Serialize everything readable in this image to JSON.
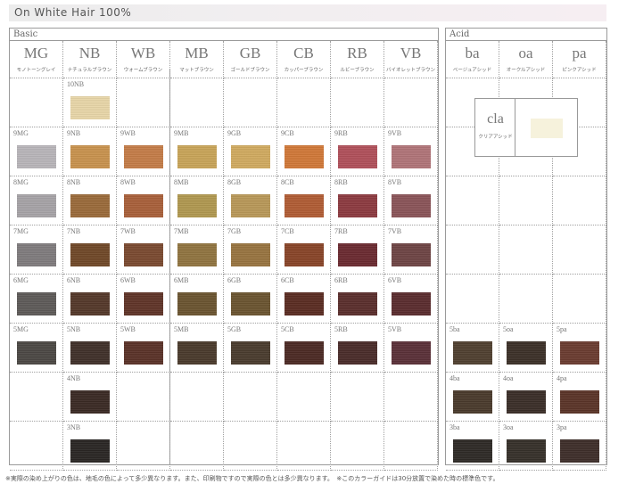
{
  "title": "On White Hair 100%",
  "basic": {
    "label": "Basic",
    "columns": [
      {
        "code": "MG",
        "ja": "モノトーングレイ",
        "swatches": [
          {
            "level": 9,
            "code": "9MG",
            "color": "#b8b5b9"
          },
          {
            "level": 8,
            "code": "8MG",
            "color": "#a6a3a7"
          },
          {
            "level": 7,
            "code": "7MG",
            "color": "#7f7b7d"
          },
          {
            "level": 6,
            "code": "6MG",
            "color": "#5e5a58"
          },
          {
            "level": 5,
            "code": "5MG",
            "color": "#4c4844"
          }
        ]
      },
      {
        "code": "NB",
        "ja": "ナチュラルブラウン",
        "swatches": [
          {
            "level": 10,
            "code": "10NB",
            "color": "#e8d6a8"
          },
          {
            "level": 9,
            "code": "9NB",
            "color": "#c8924e"
          },
          {
            "level": 8,
            "code": "8NB",
            "color": "#9a6a3a"
          },
          {
            "level": 7,
            "code": "7NB",
            "color": "#704828"
          },
          {
            "level": 6,
            "code": "6NB",
            "color": "#54382a"
          },
          {
            "level": 5,
            "code": "5NB",
            "color": "#40302a"
          },
          {
            "level": 4,
            "code": "4NB",
            "color": "#3a2a24"
          },
          {
            "level": 3,
            "code": "3NB",
            "color": "#2a2624"
          }
        ]
      },
      {
        "code": "WB",
        "ja": "ウォームブラウン",
        "swatches": [
          {
            "level": 9,
            "code": "9WB",
            "color": "#c47c48"
          },
          {
            "level": 8,
            "code": "8WB",
            "color": "#a8603a"
          },
          {
            "level": 7,
            "code": "7WB",
            "color": "#7a4a30"
          },
          {
            "level": 6,
            "code": "6WB",
            "color": "#603428"
          },
          {
            "level": 5,
            "code": "5WB",
            "color": "#5a3228"
          }
        ]
      },
      {
        "code": "MB",
        "ja": "マットブラウン",
        "swatches": [
          {
            "level": 9,
            "code": "9MB",
            "color": "#c8a458"
          },
          {
            "level": 8,
            "code": "8MB",
            "color": "#b09850"
          },
          {
            "level": 7,
            "code": "7MB",
            "color": "#907440"
          },
          {
            "level": 6,
            "code": "6MB",
            "color": "#6a5430"
          },
          {
            "level": 5,
            "code": "5MB",
            "color": "#4a3a2c"
          }
        ]
      },
      {
        "code": "GB",
        "ja": "ゴールドブラウン",
        "swatches": [
          {
            "level": 9,
            "code": "9GB",
            "color": "#d0aa60"
          },
          {
            "level": 8,
            "code": "8GB",
            "color": "#b89858"
          },
          {
            "level": 7,
            "code": "7GB",
            "color": "#987440"
          },
          {
            "level": 6,
            "code": "6GB",
            "color": "#6a5430"
          },
          {
            "level": 5,
            "code": "5GB",
            "color": "#4a3c2e"
          }
        ]
      },
      {
        "code": "CB",
        "ja": "カッパーブラウン",
        "swatches": [
          {
            "level": 9,
            "code": "9CB",
            "color": "#d07838"
          },
          {
            "level": 8,
            "code": "8CB",
            "color": "#b05c34"
          },
          {
            "level": 7,
            "code": "7CB",
            "color": "#884428"
          },
          {
            "level": 6,
            "code": "6CB",
            "color": "#5a2c22"
          },
          {
            "level": 5,
            "code": "5CB",
            "color": "#4c2a24"
          }
        ]
      },
      {
        "code": "RB",
        "ja": "ルビーブラウン",
        "swatches": [
          {
            "level": 9,
            "code": "9RB",
            "color": "#b0505a"
          },
          {
            "level": 8,
            "code": "8RB",
            "color": "#8c3a40"
          },
          {
            "level": 7,
            "code": "7RB",
            "color": "#6a2a30"
          },
          {
            "level": 6,
            "code": "6RB",
            "color": "#5a2e2c"
          },
          {
            "level": 5,
            "code": "5RB",
            "color": "#4a2c2a"
          }
        ]
      },
      {
        "code": "VB",
        "ja": "バイオレットブラウン",
        "swatches": [
          {
            "level": 9,
            "code": "9VB",
            "color": "#b07478"
          },
          {
            "level": 8,
            "code": "8VB",
            "color": "#8a5458"
          },
          {
            "level": 7,
            "code": "7VB",
            "color": "#6e4444"
          },
          {
            "level": 6,
            "code": "6VB",
            "color": "#5a2c2e"
          },
          {
            "level": 5,
            "code": "5VB",
            "color": "#5a3038"
          }
        ]
      }
    ]
  },
  "acid": {
    "label": "Acid",
    "columns": [
      {
        "code": "ba",
        "ja": "ベージュアシッド",
        "swatches": [
          {
            "level": 5,
            "code": "5ba",
            "color": "#504030"
          },
          {
            "level": 4,
            "code": "4ba",
            "color": "#4a3a2c"
          },
          {
            "level": 3,
            "code": "3ba",
            "color": "#2e2a26"
          }
        ]
      },
      {
        "code": "oa",
        "ja": "オークルアシッド",
        "swatches": [
          {
            "level": 5,
            "code": "5oa",
            "color": "#3c3028"
          },
          {
            "level": 4,
            "code": "4oa",
            "color": "#3a2e28"
          },
          {
            "level": 3,
            "code": "3oa",
            "color": "#36302a"
          }
        ]
      },
      {
        "code": "pa",
        "ja": "ピンクアシッド",
        "swatches": [
          {
            "level": 5,
            "code": "5pa",
            "color": "#6a3c30"
          },
          {
            "level": 4,
            "code": "4pa",
            "color": "#5a3428"
          },
          {
            "level": 3,
            "code": "3pa",
            "color": "#3e2e2a"
          }
        ]
      }
    ],
    "clear": {
      "code": "cla",
      "ja": "クリアアシッド",
      "color": "#f6f2dc"
    }
  },
  "footnote": "※実際の染め上がりの色は、地毛の色によって多少異なります。また、印刷物ですので実際の色とは多少異なります。　※このカラーガイドは30分放置で染めた時の標準色です。"
}
